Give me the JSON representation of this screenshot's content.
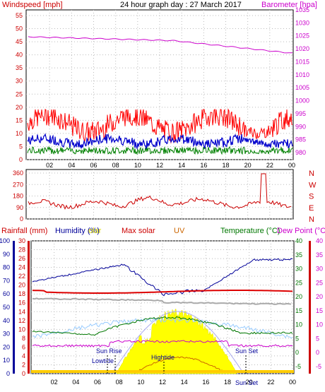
{
  "header": {
    "left_label": "Windspeed [mph]",
    "center_label": "24 hour graph day : 27 March 2017",
    "right_label": "Barometer [hpa]"
  },
  "top_panel": {
    "left_ticks": [
      "55",
      "50",
      "45",
      "40",
      "35",
      "30",
      "25",
      "20",
      "15",
      "10",
      "5",
      "0"
    ],
    "right_ticks": [
      "1035",
      "1030",
      "1025",
      "1020",
      "1015",
      "1010",
      "1005",
      "1000",
      "995",
      "990",
      "985",
      "980"
    ],
    "x_ticks": [
      "02",
      "04",
      "06",
      "08",
      "10",
      "12",
      "14",
      "16",
      "18",
      "20",
      "22",
      "00"
    ]
  },
  "mid_panel": {
    "left_ticks": [
      "360",
      "270",
      "180",
      "90",
      "0"
    ],
    "right_letters": [
      "N",
      "W",
      "S",
      "E",
      "N"
    ],
    "x_ticks": [
      "02",
      "04",
      "06",
      "08",
      "10",
      "12",
      "14",
      "16",
      "18",
      "20",
      "22",
      "00"
    ]
  },
  "bottom_header": {
    "rainfall": "Rainfall (mm)",
    "humidity": "Humidity (%)",
    "solar_fragment": "olar",
    "max_solar": "Max solar",
    "uv": "UV",
    "temperature": "Temperature (°C)",
    "dew_point": "Dew Point (°C)"
  },
  "bottom_panel": {
    "humidity_ticks": [
      "100",
      "90",
      "80",
      "70",
      "60",
      "50",
      "40",
      "30",
      "20",
      "10",
      "0"
    ],
    "rain_ticks": [
      "30",
      "28",
      "26",
      "24",
      "22",
      "20",
      "18",
      "16",
      "14",
      "12",
      "10",
      "8",
      "6",
      "4",
      "2",
      "0"
    ],
    "temp_ticks": [
      "40",
      "35",
      "30",
      "25",
      "20",
      "15",
      "10",
      "5",
      "0",
      "-5"
    ],
    "dew_ticks": [
      "40",
      "35",
      "30",
      "25",
      "20",
      "15",
      "10",
      "5",
      "0",
      "-5"
    ],
    "x_ticks": [
      "02",
      "04",
      "06",
      "08",
      "10",
      "12",
      "14",
      "16",
      "18",
      "20",
      "22",
      "00"
    ],
    "annotations": {
      "sun_rise": "Sun Rise",
      "low_tide": "Lowtide",
      "high_tide": "Hightide",
      "sun_set": "Sun Set",
      "sun_set_lower": "Sun Set"
    }
  },
  "colors": {
    "wind_gust": "#ff0000",
    "wind_avg": "#0000cc",
    "wind_low": "#008000",
    "barometer": "#cc00cc",
    "direction": "#cc0000",
    "humidity": "#000099",
    "solar": "#ffff00",
    "max_solar": "#aaaaee",
    "temperature": "#007700",
    "dew_point": "#cc00cc",
    "rain": "#ff0000",
    "uv": "#cc6600"
  }
}
